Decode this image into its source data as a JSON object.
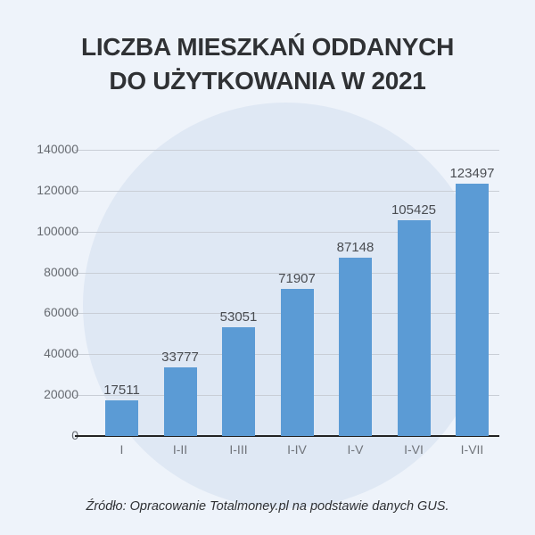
{
  "title": {
    "line1": "LICZBA MIESZKAŃ ODDANYCH",
    "line2": "DO UŻYTKOWANIA W 2021"
  },
  "source": "Źródło: Opracowanie Totalmoney.pl na podstawie danych GUS.",
  "colors": {
    "background": "#eef3fa",
    "circle": "#dfe8f4",
    "bar": "#5b9bd5",
    "title": "#2f3134"
  },
  "chart_data": {
    "type": "bar",
    "title": "LICZBA MIESZKAŃ ODDANYCH DO UŻYTKOWANIA W 2021",
    "categories": [
      "I",
      "I-II",
      "I-III",
      "I-IV",
      "I-V",
      "I-VI",
      "I-VII"
    ],
    "values": [
      17511,
      33777,
      53051,
      71907,
      87148,
      105425,
      123497
    ],
    "value_labels": [
      "17511",
      "33777",
      "53051",
      "71907",
      "87148",
      "105425",
      "123497"
    ],
    "xlabel": "",
    "ylabel": "",
    "ylim": [
      0,
      140000
    ],
    "yticks": [
      "0",
      "20000",
      "40000",
      "60000",
      "80000",
      "100000",
      "120000",
      "140000"
    ],
    "grid": true,
    "legend": null,
    "source": "Źródło: Opracowanie Totalmoney.pl na podstawie danych GUS."
  }
}
